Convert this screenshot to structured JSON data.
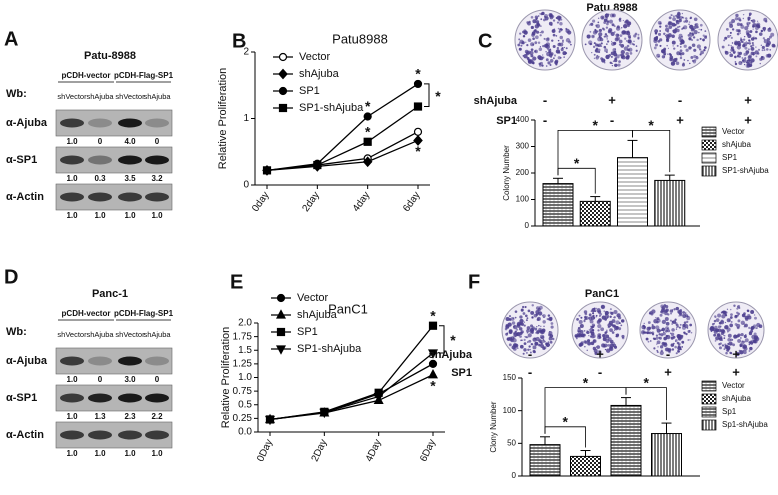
{
  "blots": [
    {
      "panel": "A",
      "title": "Patu-8988",
      "groups": [
        "pCDH-vector",
        "pCDH-Flag-SP1"
      ],
      "wb": "Wb:",
      "lanes": [
        "shVector",
        "shAjuba",
        "shVector",
        "shAjuba"
      ],
      "rows": [
        {
          "name": "α-Ajuba",
          "quant": [
            "1.0",
            "0",
            "4.0",
            "0"
          ]
        },
        {
          "name": "α-SP1",
          "quant": [
            "1.0",
            "0.3",
            "3.5",
            "3.2"
          ]
        },
        {
          "name": "α-Actin",
          "quant": [
            "1.0",
            "1.0",
            "1.0",
            "1.0"
          ]
        }
      ]
    },
    {
      "panel": "D",
      "title": "Panc-1",
      "groups": [
        "pCDH-vector",
        "pCDH-Flag-SP1"
      ],
      "wb": "Wb:",
      "lanes": [
        "shVector",
        "shAjuba",
        "shVector",
        "shAjuba"
      ],
      "rows": [
        {
          "name": "α-Ajuba",
          "quant": [
            "1.0",
            "0",
            "3.0",
            "0"
          ]
        },
        {
          "name": "α-SP1",
          "quant": [
            "1.0",
            "1.3",
            "2.3",
            "2.2"
          ]
        },
        {
          "name": "α-Actin",
          "quant": [
            "1.0",
            "1.0",
            "1.0",
            "1.0"
          ]
        }
      ]
    }
  ],
  "chart_data": [
    {
      "type": "line",
      "panel": "B",
      "title": "Patu8988",
      "y_label": "Relative Proliferation",
      "categories": [
        "0day",
        "2day",
        "4day",
        "6day"
      ],
      "ylim": [
        0,
        2
      ],
      "yticks": [
        0,
        1,
        2
      ],
      "series": [
        {
          "name": "Vector",
          "color": "#000000",
          "marker": "circle-open",
          "values": [
            0.22,
            0.3,
            0.4,
            0.8
          ]
        },
        {
          "name": "shAjuba",
          "color": "#000000",
          "marker": "diamond",
          "values": [
            0.22,
            0.28,
            0.35,
            0.67
          ]
        },
        {
          "name": "SP1",
          "color": "#000000",
          "marker": "circle",
          "values": [
            0.22,
            0.32,
            1.03,
            1.52
          ]
        },
        {
          "name": "SP1-shAjuba",
          "color": "#000000",
          "marker": "square",
          "values": [
            0.22,
            0.3,
            0.65,
            1.18
          ]
        }
      ],
      "annotations": [
        {
          "text": "*",
          "series": 2,
          "index": 2,
          "side": "above"
        },
        {
          "text": "*",
          "series": 3,
          "index": 2,
          "side": "above"
        },
        {
          "text": "*",
          "series": 2,
          "index": 3,
          "side": "above"
        },
        {
          "text": "*",
          "series": 1,
          "index": 3,
          "side": "below"
        }
      ],
      "brackets": [
        {
          "text": "*",
          "series": [
            2,
            3
          ],
          "index": 3
        }
      ]
    },
    {
      "type": "bar",
      "panel": "C",
      "title": "Patu 8988",
      "y_label": "Colony Number",
      "conditions": [
        {
          "name": "shAjuba",
          "signs": [
            "-",
            "+",
            "-",
            "+"
          ]
        },
        {
          "name": "SP1",
          "signs": [
            "-",
            "-",
            "+",
            "+"
          ]
        }
      ],
      "categories": [
        "Vector",
        "shAjuba",
        "SP1",
        "SP1-shAjuba"
      ],
      "values": [
        160,
        93,
        258,
        172
      ],
      "errors": [
        20,
        18,
        65,
        20
      ],
      "fills": [
        "p-hlines",
        "p-checker",
        "p-hlight",
        "p-vlines"
      ],
      "ylim": [
        0,
        400
      ],
      "yticks": [
        0,
        100,
        200,
        300,
        400
      ],
      "comparisons": [
        {
          "pair": [
            0,
            1
          ],
          "text": "*"
        },
        {
          "pair": [
            0,
            2
          ],
          "text": "*"
        },
        {
          "pair": [
            2,
            3
          ],
          "text": "*"
        }
      ]
    },
    {
      "type": "line",
      "panel": "E",
      "title": "PanC1",
      "y_label": "Relative Proliferation",
      "categories": [
        "0Day",
        "2Day",
        "4Day",
        "6Day"
      ],
      "ylim": [
        0,
        2
      ],
      "yticks": [
        {
          "value": 0,
          "label": "0.0"
        },
        0.25,
        0.5,
        0.75,
        {
          "value": 1,
          "label": "1.0"
        },
        1.25,
        1.5,
        1.75,
        {
          "value": 2,
          "label": "2.0"
        }
      ],
      "series": [
        {
          "name": "Vector",
          "color": "#000000",
          "marker": "circle",
          "values": [
            0.23,
            0.36,
            0.7,
            1.25
          ]
        },
        {
          "name": "shAjuba",
          "color": "#000000",
          "marker": "triangle-up",
          "values": [
            0.23,
            0.35,
            0.58,
            1.05
          ]
        },
        {
          "name": "SP1",
          "color": "#000000",
          "marker": "square",
          "values": [
            0.23,
            0.37,
            0.72,
            1.95
          ]
        },
        {
          "name": "SP1-shAjuba",
          "color": "#000000",
          "marker": "triangle-down",
          "values": [
            0.23,
            0.36,
            0.65,
            1.45
          ]
        }
      ],
      "annotations": [
        {
          "text": "*",
          "series": 2,
          "index": 3,
          "side": "above"
        },
        {
          "text": "*",
          "series": 1,
          "index": 3,
          "side": "below"
        }
      ],
      "brackets": [
        {
          "text": "*",
          "series": [
            2,
            3
          ],
          "index": 3
        }
      ]
    },
    {
      "type": "bar",
      "panel": "F",
      "title": "PanC1",
      "y_label": "Clony Number",
      "conditions": [
        {
          "name": "shAjuba",
          "signs": [
            "-",
            "+",
            "-",
            "+"
          ]
        },
        {
          "name": "SP1",
          "signs": [
            "-",
            "-",
            "+",
            "+"
          ]
        }
      ],
      "categories": [
        "Vector",
        "shAjuba",
        "Sp1",
        "Sp1-shAjuba"
      ],
      "values": [
        48,
        30,
        108,
        65
      ],
      "errors": [
        12,
        9,
        12,
        16
      ],
      "fills": [
        "p-hlines",
        "p-checker",
        "p-hlines",
        "p-vlines"
      ],
      "ylim": [
        0,
        150
      ],
      "yticks": [
        0,
        50,
        100,
        150
      ],
      "comparisons": [
        {
          "pair": [
            0,
            1
          ],
          "text": "*"
        },
        {
          "pair": [
            0,
            2
          ],
          "text": "*"
        },
        {
          "pair": [
            2,
            3
          ],
          "text": "*"
        }
      ]
    }
  ]
}
